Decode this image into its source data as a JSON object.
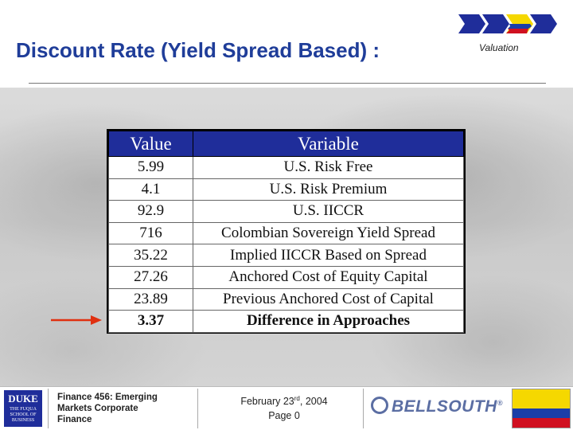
{
  "slide": {
    "title": "Discount Rate (Yield Spread Based) :",
    "section_label": "Valuation"
  },
  "table": {
    "headers": [
      "Value",
      "Variable"
    ],
    "rows": [
      {
        "value": "5.99",
        "variable": "U.S. Risk Free"
      },
      {
        "value": "4.1",
        "variable": "U.S. Risk Premium"
      },
      {
        "value": "92.9",
        "variable": "U.S. IICCR"
      },
      {
        "value": "716",
        "variable": "Colombian Sovereign Yield Spread"
      },
      {
        "value": "35.22",
        "variable": "Implied IICCR Based on Spread"
      },
      {
        "value": "27.26",
        "variable": "Anchored Cost of Equity Capital"
      },
      {
        "value": "23.89",
        "variable": "Previous Anchored Cost of Capital"
      },
      {
        "value": "3.37",
        "variable": "Difference in Approaches"
      }
    ]
  },
  "footer": {
    "duke_logo_text": "DUKE",
    "duke_logo_sub": "THE FUQUA SCHOOL OF BUSINESS",
    "course_line1": "Finance 456: Emerging",
    "course_line2": "Markets Corporate",
    "course_line3": "Finance",
    "date_prefix": "February 23",
    "date_sup": "rd",
    "date_suffix": ", 2004",
    "page": "Page 0",
    "bellsouth_text": "BELLSOUTH",
    "bellsouth_mark": "®"
  },
  "colors": {
    "title": "#1f3d99",
    "table_header": "#1f2d9a",
    "arrow": "#e03010",
    "flag_yellow": "#f5d800",
    "flag_blue": "#1a3ea8",
    "flag_red": "#d01020"
  }
}
